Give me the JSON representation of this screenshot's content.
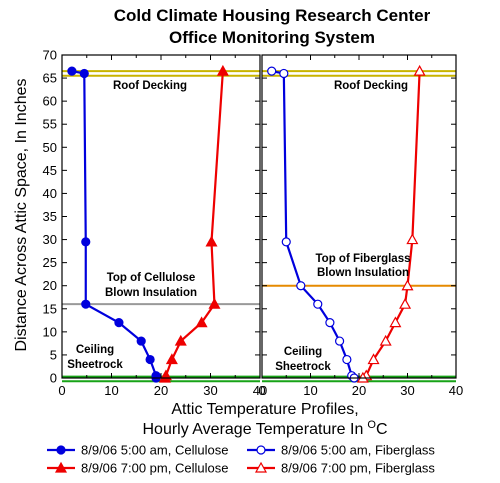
{
  "chart_data": {
    "type": "line",
    "title": "Cold Climate Housing Research Center",
    "subtitle": "Office Monitoring System",
    "xlabel_line1": "Attic Temperature Profiles,",
    "xlabel_line2": "Hourly Average Temperature In",
    "xlabel_unit_sup": "O",
    "xlabel_unit": "C",
    "ylabel": "Distance Across Attic Space, In Inches",
    "xlim": [
      0,
      40
    ],
    "ylim": [
      0,
      70
    ],
    "x_ticks": [
      "0",
      "10",
      "20",
      "30",
      "40"
    ],
    "y_ticks": [
      "0",
      "5",
      "10",
      "15",
      "20",
      "25",
      "30",
      "35",
      "40",
      "45",
      "50",
      "55",
      "60",
      "65",
      "70"
    ],
    "grid": false,
    "legend_position": "bottom",
    "panels": [
      {
        "id": "cellulose",
        "annotations": {
          "roof": "Roof Decking",
          "top_line1": "Top of Cellulose",
          "top_line2": "Blown Insulation",
          "ceiling_line1": "Ceiling",
          "ceiling_line2": "Sheetrock"
        },
        "reference_lines": [
          {
            "y": 66.5,
            "color": "#c8b400"
          },
          {
            "y": 65.5,
            "color": "#c8b400"
          },
          {
            "y": 16,
            "color": "#999999"
          },
          {
            "y": 0.3,
            "color": "#17a317"
          },
          {
            "y": -0.7,
            "color": "#17a317"
          }
        ],
        "series": [
          {
            "name": "8/9/06 5:00 am, Cellulose",
            "color": "#0000dd",
            "marker": "filled-circle",
            "x": [
              2,
              4.5,
              4.8,
              4.8,
              11.5,
              16,
              17.8,
              19,
              19
            ],
            "y": [
              66.5,
              66,
              29.5,
              16,
              12,
              8,
              4,
              0.5,
              0
            ]
          },
          {
            "name": "8/9/06 7:00 pm, Cellulose",
            "color": "#ee0000",
            "marker": "filled-triangle",
            "x": [
              32.5,
              30.2,
              30.8,
              28.2,
              24,
              22.2,
              21,
              20.8
            ],
            "y": [
              66.5,
              29.5,
              16,
              12,
              8,
              4,
              0.5,
              0
            ]
          }
        ]
      },
      {
        "id": "fiberglass",
        "annotations": {
          "roof": "Roof Decking",
          "top_line1": "Top of Fiberglass",
          "top_line2": "Blown Insulation",
          "ceiling_line1": "Ceiling",
          "ceiling_line2": "Sheetrock"
        },
        "reference_lines": [
          {
            "y": 66.5,
            "color": "#c8b400"
          },
          {
            "y": 65.5,
            "color": "#c8b400"
          },
          {
            "y": 20,
            "color": "#e68a00"
          },
          {
            "y": 0.3,
            "color": "#17a317"
          },
          {
            "y": -0.7,
            "color": "#17a317"
          }
        ],
        "series": [
          {
            "name": "8/9/06 5:00 am, Fiberglass",
            "color": "#0000dd",
            "marker": "open-circle",
            "x": [
              2,
              4.5,
              5,
              8,
              11.5,
              14,
              16,
              17.5,
              18.5,
              19
            ],
            "y": [
              66.5,
              66,
              29.5,
              20,
              16,
              12,
              8,
              4,
              0.5,
              0
            ]
          },
          {
            "name": "8/9/06 7:00 pm, Fiberglass",
            "color": "#ee0000",
            "marker": "open-triangle",
            "x": [
              32.5,
              31,
              30,
              29.5,
              27.5,
              25.5,
              23,
              21.5,
              20.8
            ],
            "y": [
              66.5,
              30,
              20,
              16,
              12,
              8,
              4,
              0.5,
              0
            ]
          }
        ]
      }
    ],
    "legend": [
      {
        "label": "8/9/06 5:00 am, Cellulose",
        "color": "#0000dd",
        "marker": "filled-circle"
      },
      {
        "label": "8/9/06 5:00 am, Fiberglass",
        "color": "#0000dd",
        "marker": "open-circle"
      },
      {
        "label": "8/9/06 7:00 pm, Cellulose",
        "color": "#ee0000",
        "marker": "filled-triangle"
      },
      {
        "label": "8/9/06 7:00 pm, Fiberglass",
        "color": "#ee0000",
        "marker": "open-triangle"
      }
    ]
  }
}
